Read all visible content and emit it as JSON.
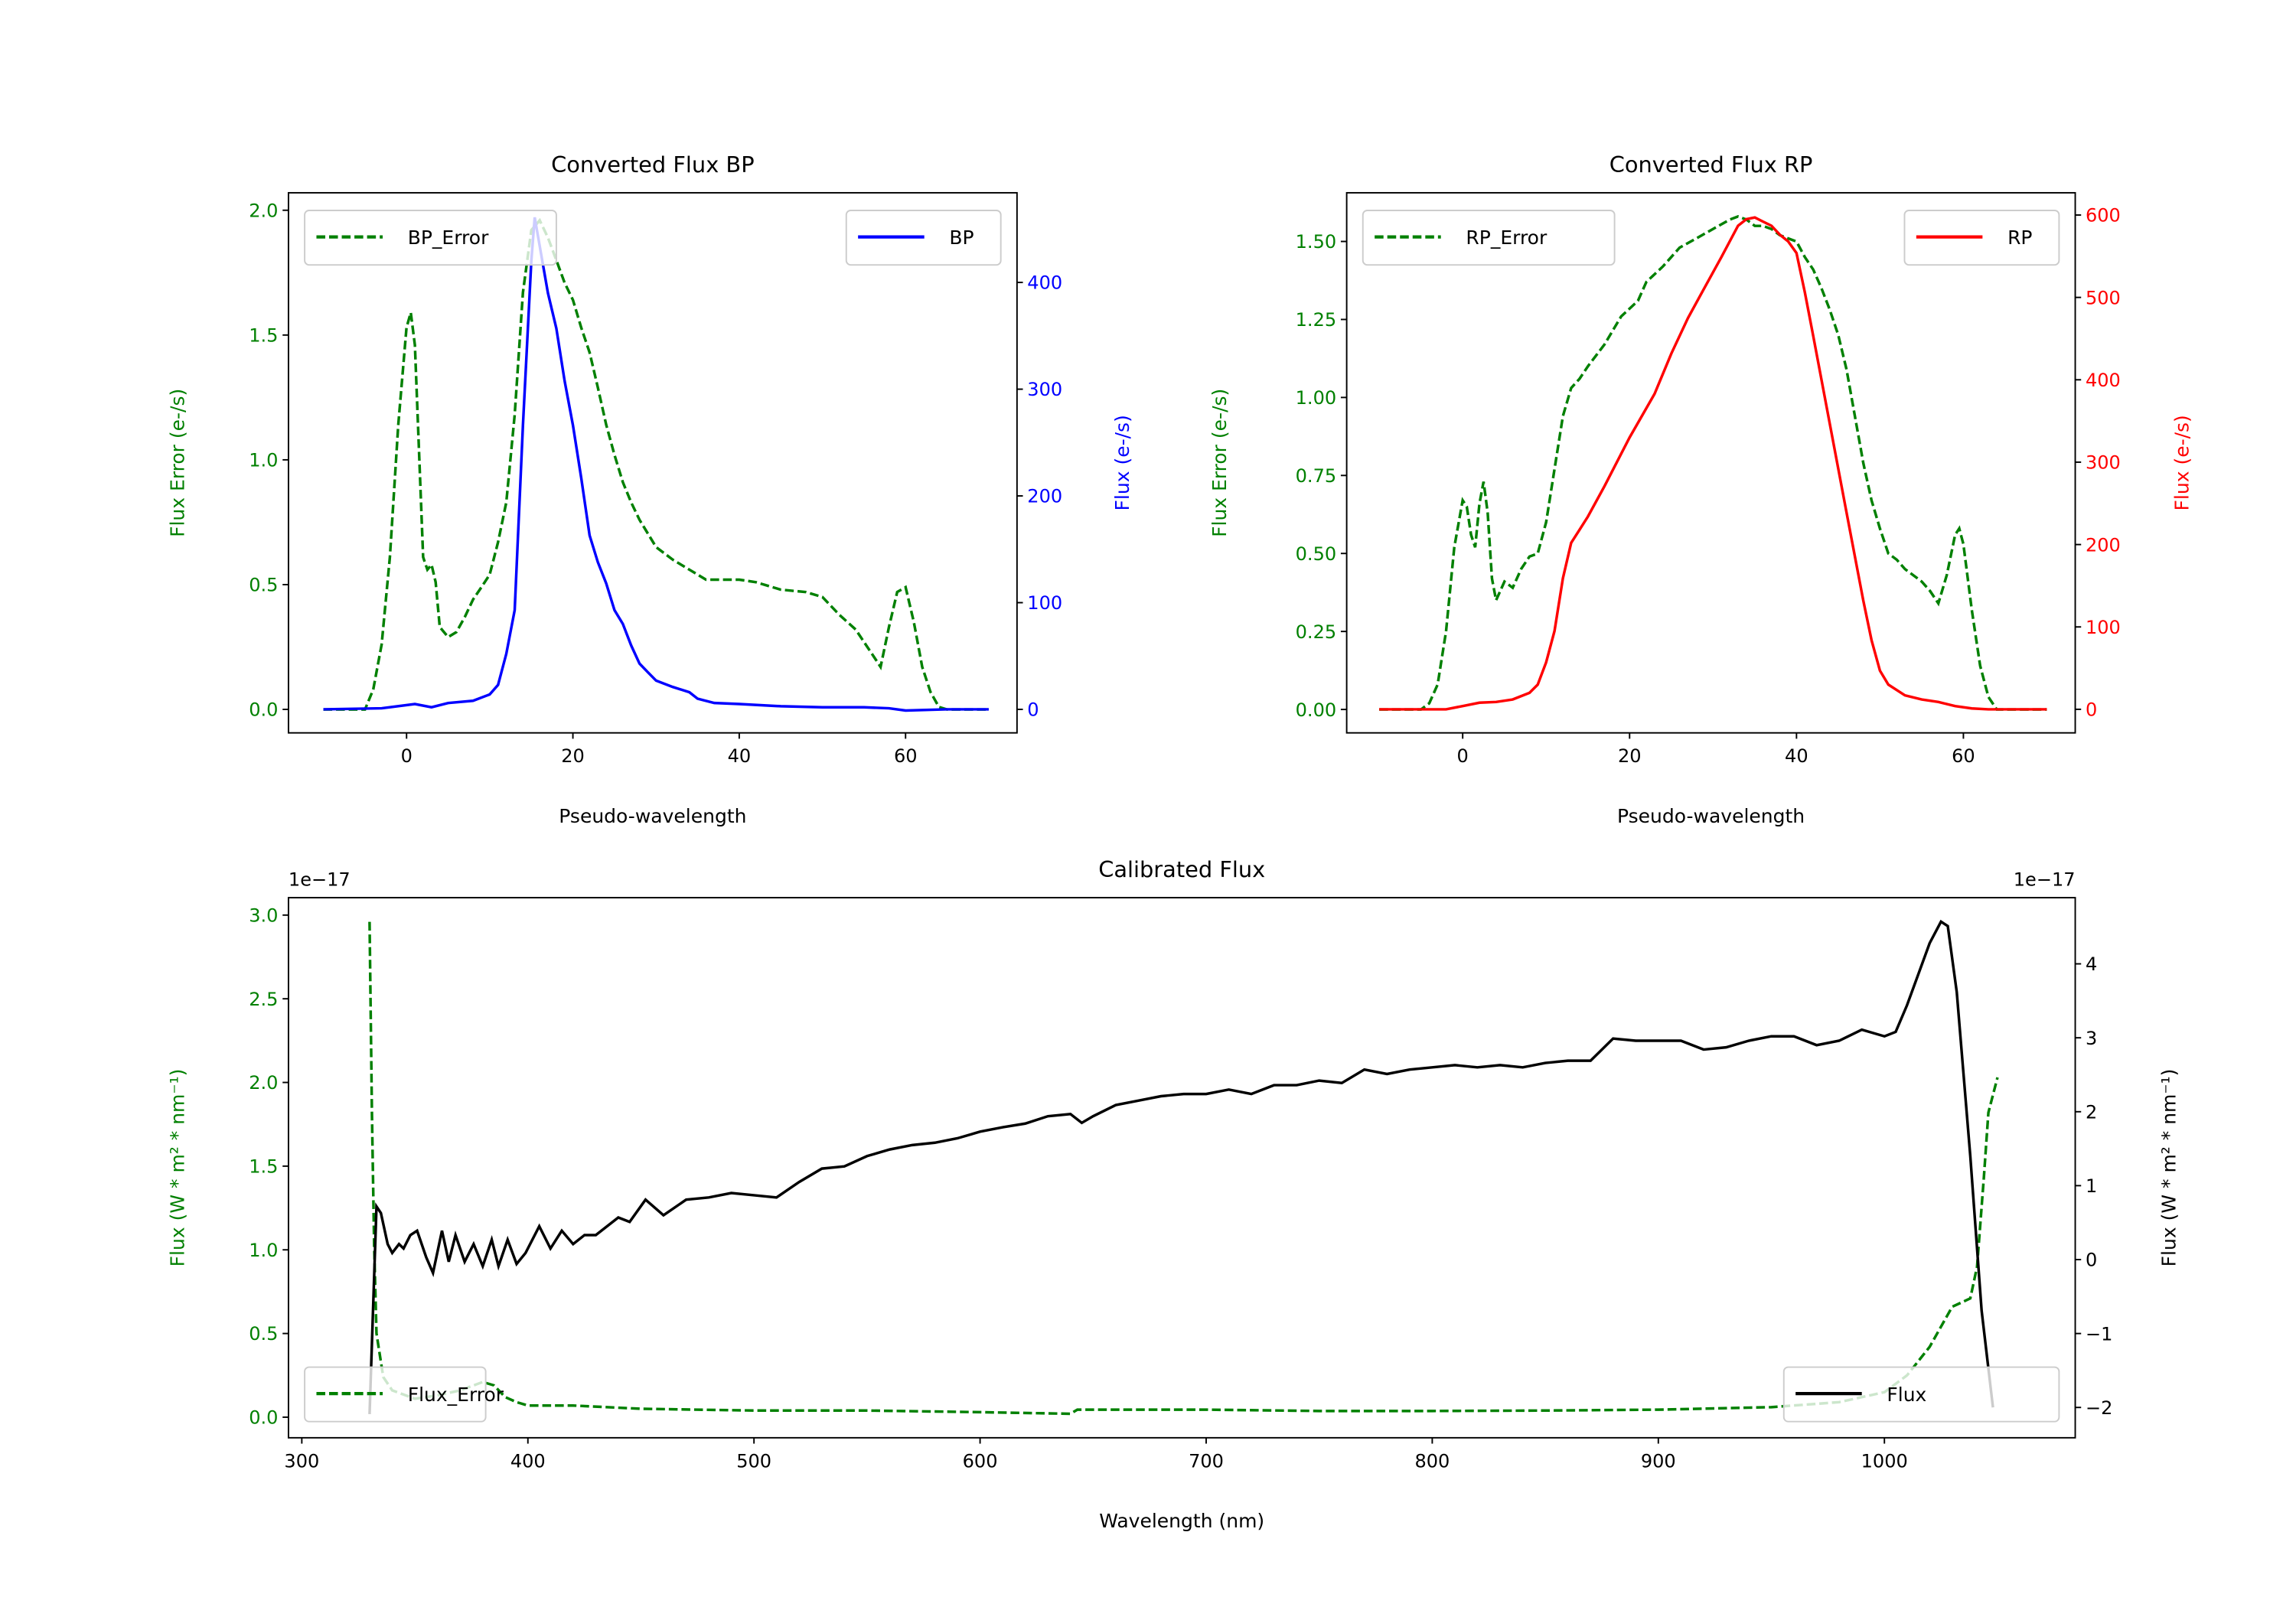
{
  "chart_data": [
    {
      "type": "line",
      "title": "Converted Flux BP",
      "xlabel": "Pseudo-wavelength",
      "ylabel_left": "Flux Error (e-/s)",
      "ylabel_right": "Flux (e-/s)",
      "left_color": "#008000",
      "right_color": "#0000ff",
      "xlim": [
        -14.2,
        73.4
      ],
      "ylim_left": [
        -0.094,
        2.07
      ],
      "ylim_right": [
        -22,
        484
      ],
      "xticks": [
        0,
        20,
        40,
        60
      ],
      "xtick_labels": [
        "0",
        "20",
        "40",
        "60"
      ],
      "yticks_left": [
        0,
        0.5,
        1,
        1.5,
        2
      ],
      "ytick_labels_left": [
        "0.0",
        "0.5",
        "1.0",
        "1.5",
        "2.0"
      ],
      "yticks_right": [
        0,
        100,
        200,
        300,
        400
      ],
      "ytick_labels_right": [
        "0",
        "100",
        "200",
        "300",
        "400"
      ],
      "legend_left": "top-left",
      "legend_right": "top-right",
      "series": [
        {
          "name": "BP_Error",
          "axis": "left",
          "color": "#008000",
          "style": "dashed",
          "x": [
            -10,
            -5,
            -4,
            -3,
            -2,
            -1,
            0,
            0.5,
            1,
            2,
            2.5,
            3,
            3.5,
            4,
            5,
            6,
            7,
            8,
            9,
            10,
            11,
            12,
            13,
            14,
            15,
            16,
            17,
            18,
            19,
            20,
            21,
            22,
            23,
            24,
            25,
            26,
            27,
            28,
            30,
            32,
            34,
            36,
            38,
            40,
            42,
            45,
            48,
            50,
            52,
            54,
            56,
            57,
            58,
            59,
            60,
            61,
            62,
            63,
            64,
            65,
            70
          ],
          "y": [
            0,
            0,
            0.08,
            0.26,
            0.61,
            1.14,
            1.53,
            1.59,
            1.46,
            0.61,
            0.56,
            0.58,
            0.51,
            0.33,
            0.29,
            0.31,
            0.37,
            0.44,
            0.49,
            0.54,
            0.67,
            0.83,
            1.18,
            1.67,
            1.92,
            1.96,
            1.89,
            1.8,
            1.71,
            1.64,
            1.53,
            1.43,
            1.29,
            1.14,
            1.02,
            0.91,
            0.83,
            0.76,
            0.65,
            0.6,
            0.56,
            0.52,
            0.52,
            0.52,
            0.51,
            0.48,
            0.47,
            0.45,
            0.38,
            0.32,
            0.22,
            0.17,
            0.33,
            0.47,
            0.49,
            0.35,
            0.17,
            0.07,
            0.01,
            0,
            0
          ]
        },
        {
          "name": "BP",
          "axis": "right",
          "color": "#0000ff",
          "style": "solid",
          "x": [
            -10,
            -3,
            1,
            3,
            5,
            8,
            10,
            11,
            12,
            13,
            14,
            15,
            15.4,
            17,
            18,
            19,
            20,
            21,
            22,
            23,
            24,
            25,
            26,
            27,
            28,
            29,
            30,
            32,
            34,
            35,
            37,
            40,
            45,
            50,
            55,
            58,
            60,
            65,
            70
          ],
          "y": [
            0,
            1,
            5,
            2,
            6,
            8,
            14,
            23,
            52,
            93,
            266,
            420,
            461,
            390,
            357,
            308,
            266,
            217,
            163,
            138,
            118,
            93,
            80,
            60,
            43,
            35,
            27,
            21,
            16,
            10,
            6,
            5,
            3,
            2,
            2,
            1,
            -1,
            0,
            0
          ]
        }
      ]
    },
    {
      "type": "line",
      "title": "Converted Flux RP",
      "xlabel": "Pseudo-wavelength",
      "ylabel_left": "Flux Error (e-/s)",
      "ylabel_right": "Flux (e-/s)",
      "left_color": "#008000",
      "right_color": "#ff0000",
      "xlim": [
        -13.9,
        73.4
      ],
      "ylim_left": [
        -0.075,
        1.656
      ],
      "ylim_right": [
        -28.6,
        627
      ],
      "xticks": [
        0,
        20,
        40,
        60
      ],
      "xtick_labels": [
        "0",
        "20",
        "40",
        "60"
      ],
      "yticks_left": [
        0,
        0.25,
        0.5,
        0.75,
        1,
        1.25,
        1.5
      ],
      "ytick_labels_left": [
        "0.00",
        "0.25",
        "0.50",
        "0.75",
        "1.00",
        "1.25",
        "1.50"
      ],
      "yticks_right": [
        0,
        100,
        200,
        300,
        400,
        500,
        600
      ],
      "ytick_labels_right": [
        "0",
        "100",
        "200",
        "300",
        "400",
        "500",
        "600"
      ],
      "legend_left": "top-left",
      "legend_right": "top-right",
      "series": [
        {
          "name": "RP_Error",
          "axis": "left",
          "color": "#008000",
          "style": "dashed",
          "x": [
            -10,
            -5,
            -4,
            -3,
            -2,
            -1,
            0,
            0.5,
            1,
            1.5,
            2,
            2.5,
            3,
            3.5,
            4,
            5,
            6,
            7,
            8,
            9,
            10,
            11,
            12,
            13,
            14,
            15,
            17,
            19,
            21,
            22,
            24,
            26,
            28,
            30,
            32,
            33,
            34,
            35,
            36,
            37,
            38,
            39,
            40,
            41,
            42,
            43,
            44,
            45,
            46,
            47,
            48,
            49,
            50,
            51,
            52,
            53,
            54,
            55,
            56,
            57,
            58,
            59,
            59.5,
            60,
            61,
            62,
            63,
            64,
            70
          ],
          "y": [
            0,
            0,
            0.02,
            0.08,
            0.25,
            0.52,
            0.67,
            0.65,
            0.56,
            0.52,
            0.66,
            0.73,
            0.63,
            0.42,
            0.35,
            0.41,
            0.39,
            0.45,
            0.49,
            0.5,
            0.6,
            0.77,
            0.94,
            1.03,
            1.06,
            1.1,
            1.17,
            1.26,
            1.31,
            1.37,
            1.42,
            1.48,
            1.51,
            1.54,
            1.57,
            1.58,
            1.57,
            1.55,
            1.55,
            1.54,
            1.52,
            1.51,
            1.5,
            1.45,
            1.41,
            1.35,
            1.28,
            1.2,
            1.09,
            0.94,
            0.79,
            0.67,
            0.58,
            0.5,
            0.48,
            0.45,
            0.43,
            0.41,
            0.38,
            0.34,
            0.43,
            0.56,
            0.58,
            0.53,
            0.32,
            0.14,
            0.04,
            0,
            0
          ]
        },
        {
          "name": "RP",
          "axis": "right",
          "color": "#ff0000",
          "style": "solid",
          "x": [
            -10,
            -2,
            0,
            2,
            4,
            6,
            8,
            9,
            10,
            11,
            12,
            13,
            14,
            15,
            17,
            20,
            23,
            25,
            27,
            29,
            31,
            33,
            34,
            35,
            36,
            37,
            38,
            39,
            40,
            41,
            42,
            44,
            46,
            48,
            49,
            50,
            51,
            53,
            55,
            57,
            59,
            61,
            63,
            70
          ],
          "y": [
            0,
            0,
            4,
            8,
            9,
            12,
            20,
            30,
            57,
            95,
            159,
            202,
            218,
            234,
            271,
            330,
            383,
            432,
            475,
            512,
            549,
            587,
            595,
            597,
            592,
            587,
            576,
            568,
            554,
            506,
            453,
            346,
            239,
            132,
            84,
            47,
            30,
            17,
            12,
            9,
            4,
            1,
            0,
            0
          ]
        }
      ]
    },
    {
      "type": "line",
      "title": "Calibrated Flux",
      "xlabel": "Wavelength (nm)",
      "ylabel_left": "Flux (W * m² * nm⁻¹)",
      "ylabel_right": "Flux (W * m² * nm⁻¹)",
      "offset_left": "1e−17",
      "offset_right": "1e−17",
      "left_color": "#008000",
      "right_color": "#000000",
      "xlim": [
        294.1,
        1084.4
      ],
      "ylim_left": [
        -0.123,
        3.104
      ],
      "ylim_right": [
        -2.41,
        4.895
      ],
      "xticks": [
        300,
        400,
        500,
        600,
        700,
        800,
        900,
        1000
      ],
      "xtick_labels": [
        "300",
        "400",
        "500",
        "600",
        "700",
        "800",
        "900",
        "1000"
      ],
      "yticks_left": [
        0,
        0.5,
        1,
        1.5,
        2,
        2.5,
        3
      ],
      "ytick_labels_left": [
        "0.0",
        "0.5",
        "1.0",
        "1.5",
        "2.0",
        "2.5",
        "3.0"
      ],
      "yticks_right": [
        -2,
        -1,
        0,
        1,
        2,
        3,
        4
      ],
      "ytick_labels_right": [
        "−2",
        "−1",
        "0",
        "1",
        "2",
        "3",
        "4"
      ],
      "legend_left": "lower-left",
      "legend_right": "lower-right",
      "series": [
        {
          "name": "Flux_Error",
          "axis": "left",
          "color": "#008000",
          "style": "dashed",
          "x": [
            330,
            331,
            332,
            333,
            336,
            340,
            350,
            360,
            370,
            380,
            385,
            390,
            395,
            400,
            420,
            450,
            500,
            550,
            600,
            640,
            643,
            700,
            750,
            800,
            850,
            900,
            950,
            980,
            1000,
            1010,
            1020,
            1030,
            1038,
            1041,
            1044,
            1046,
            1050
          ],
          "y": [
            2.96,
            1.82,
            1.03,
            0.5,
            0.24,
            0.16,
            0.11,
            0.13,
            0.16,
            0.21,
            0.19,
            0.12,
            0.09,
            0.07,
            0.07,
            0.05,
            0.04,
            0.04,
            0.03,
            0.02,
            0.045,
            0.045,
            0.037,
            0.037,
            0.04,
            0.045,
            0.06,
            0.09,
            0.15,
            0.25,
            0.42,
            0.66,
            0.71,
            0.9,
            1.43,
            1.82,
            2.03
          ]
        },
        {
          "name": "Flux",
          "axis": "right",
          "color": "#000000",
          "style": "solid",
          "x": [
            330,
            333,
            335,
            338,
            340,
            343,
            345,
            348,
            351,
            355,
            358,
            362,
            365,
            368,
            372,
            376,
            380,
            384,
            387,
            391,
            395,
            399,
            405,
            410,
            415,
            420,
            425,
            430,
            440,
            445,
            452,
            460,
            470,
            480,
            490,
            500,
            510,
            520,
            530,
            540,
            550,
            560,
            570,
            580,
            590,
            600,
            610,
            620,
            630,
            640,
            645,
            650,
            660,
            670,
            680,
            690,
            700,
            710,
            720,
            730,
            740,
            750,
            760,
            770,
            780,
            790,
            800,
            810,
            820,
            830,
            840,
            850,
            860,
            870,
            880,
            890,
            900,
            910,
            920,
            930,
            940,
            950,
            960,
            970,
            980,
            990,
            1000,
            1005,
            1010,
            1020,
            1025,
            1028,
            1032,
            1038,
            1043,
            1048
          ],
          "y": [
            -2.09,
            0.72,
            0.63,
            0.21,
            0.09,
            0.21,
            0.15,
            0.33,
            0.39,
            0.03,
            -0.18,
            0.39,
            -0.03,
            0.33,
            -0.03,
            0.21,
            -0.09,
            0.27,
            -0.09,
            0.27,
            -0.06,
            0.09,
            0.45,
            0.15,
            0.39,
            0.21,
            0.33,
            0.33,
            0.57,
            0.51,
            0.81,
            0.6,
            0.81,
            0.84,
            0.9,
            0.87,
            0.84,
            1.05,
            1.23,
            1.26,
            1.4,
            1.49,
            1.55,
            1.58,
            1.64,
            1.73,
            1.79,
            1.84,
            1.94,
            1.97,
            1.85,
            1.94,
            2.09,
            2.15,
            2.21,
            2.24,
            2.24,
            2.3,
            2.24,
            2.36,
            2.36,
            2.42,
            2.39,
            2.57,
            2.51,
            2.57,
            2.6,
            2.63,
            2.6,
            2.63,
            2.6,
            2.66,
            2.69,
            2.69,
            2.99,
            2.96,
            2.96,
            2.96,
            2.84,
            2.87,
            2.96,
            3.02,
            3.02,
            2.9,
            2.96,
            3.11,
            3.02,
            3.08,
            3.44,
            4.28,
            4.57,
            4.51,
            3.62,
            1.4,
            -0.69,
            -2.0
          ]
        }
      ]
    }
  ]
}
